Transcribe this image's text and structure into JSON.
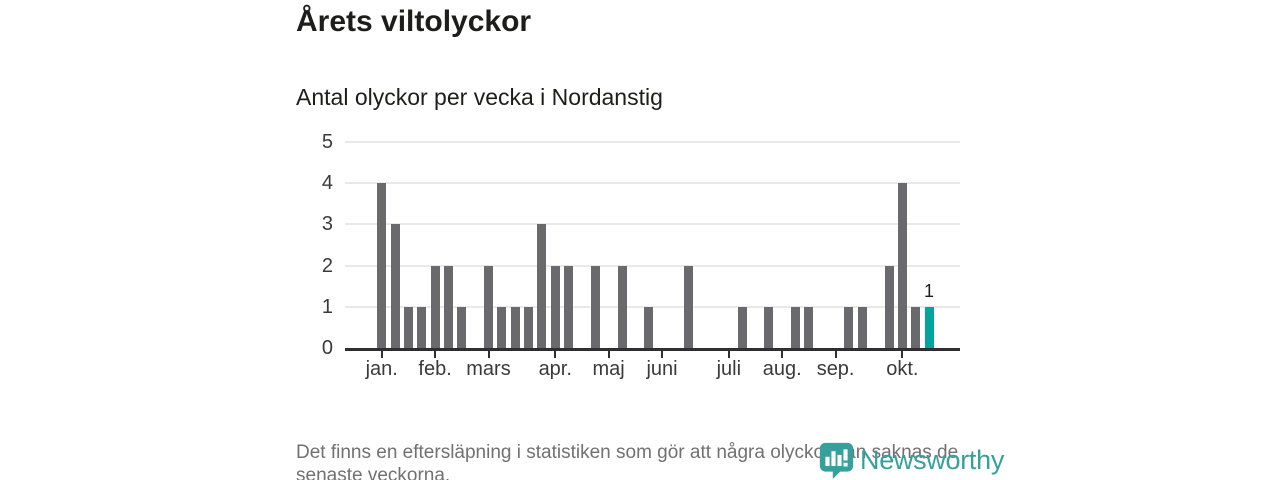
{
  "header": {
    "title": "Årets viltolyckor",
    "subtitle": "Antal olyckor per vecka i Nordanstig"
  },
  "chart_data": {
    "type": "bar",
    "title": "Årets viltolyckor",
    "subtitle": "Antal olyckor per vecka i Nordanstig",
    "x_unit": "week",
    "num_weeks": 42,
    "values": [
      4,
      3,
      1,
      1,
      2,
      2,
      1,
      0,
      2,
      1,
      1,
      1,
      3,
      2,
      2,
      0,
      2,
      0,
      2,
      0,
      1,
      0,
      0,
      2,
      0,
      0,
      0,
      1,
      0,
      1,
      0,
      1,
      1,
      0,
      0,
      1,
      1,
      0,
      2,
      4,
      1,
      1
    ],
    "highlight_index": 41,
    "highlight_label": "1",
    "ylim": [
      0,
      5
    ],
    "yticks": [
      0,
      1,
      2,
      3,
      4,
      5
    ],
    "month_ticks": [
      {
        "label": "jan.",
        "week": 1
      },
      {
        "label": "feb.",
        "week": 5
      },
      {
        "label": "mars",
        "week": 9
      },
      {
        "label": "apr.",
        "week": 14
      },
      {
        "label": "maj",
        "week": 18
      },
      {
        "label": "juni",
        "week": 22
      },
      {
        "label": "juli",
        "week": 27
      },
      {
        "label": "aug.",
        "week": 31
      },
      {
        "label": "sep.",
        "week": 35
      },
      {
        "label": "okt.",
        "week": 40
      }
    ],
    "grid_on": true,
    "legend": "none",
    "colors": {
      "bar": "#6a6a6e",
      "highlight": "#00a59e",
      "grid": "#e9e9e9",
      "axis": "#2f2f33",
      "tick_text": "#3a3a3a"
    }
  },
  "footer": {
    "note": "Det finns en eftersläpning i statistiken som gör att några olyckor kan saknas de senaste veckorna."
  },
  "branding": {
    "logo_text": "Newsworthy",
    "logo_color": "#37a09d"
  }
}
